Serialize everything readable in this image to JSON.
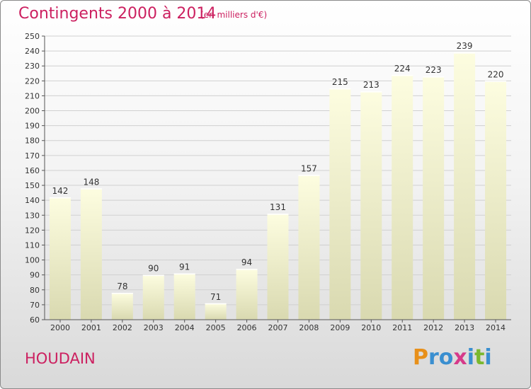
{
  "header": {
    "title": "Contingents 2000 à 2014",
    "unit": "(en milliers d'€)"
  },
  "footer": {
    "commune": "HOUDAIN",
    "logo_text": "Proxiti"
  },
  "colors": {
    "title": "#cc2060",
    "bar_top": "#fdfde0",
    "bar_bottom": "#d9d9b0",
    "grid": "#d0d0d0",
    "axis": "#555555",
    "logo": [
      "#e8901a",
      "#3a8fd0",
      "#3a8fd0",
      "#d63a8a",
      "#3a8fd0",
      "#7ab82e",
      "#3a8fd0"
    ]
  },
  "chart_data": {
    "type": "bar",
    "title": "Contingents 2000 à 2014",
    "unit": "(en milliers d'€)",
    "categories": [
      "2000",
      "2001",
      "2002",
      "2003",
      "2004",
      "2005",
      "2006",
      "2007",
      "2008",
      "2009",
      "2010",
      "2011",
      "2012",
      "2013",
      "2014"
    ],
    "values": [
      142,
      148,
      78,
      90,
      91,
      71,
      94,
      131,
      157,
      215,
      213,
      224,
      223,
      239,
      220
    ],
    "ylim": [
      60,
      250
    ],
    "ytick_step": 10,
    "grid": true,
    "data_labels": true
  }
}
